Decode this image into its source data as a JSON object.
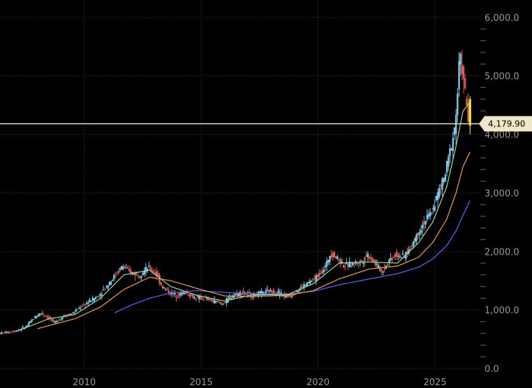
{
  "chart_data": {
    "type": "candlestick",
    "title": "",
    "xlabel": "",
    "ylabel": "",
    "x_tick_labels": [
      "2010",
      "2015",
      "2020",
      "2025"
    ],
    "y_tick_labels": [
      "6,000.0",
      "5,000.0",
      "4,000.0",
      "3,000.0",
      "2,000.0",
      "1,000.0",
      "0.0"
    ],
    "xlim": [
      2006.4,
      2027.0
    ],
    "ylim": [
      0,
      6200
    ],
    "y_axis_position": "right",
    "grid": true,
    "last_price_label": "4,179.90",
    "last_price": 4179.9,
    "colors": {
      "background": "#000000",
      "candle_up": "#7ec8e8",
      "candle_down": "#e05a5a",
      "ma_short": "#8fd98f",
      "ma_medium": "#e8963c",
      "ma_long": "#5a5aff",
      "price_line": "#e8e0c0",
      "last_candle": "#ffff00",
      "price_tag": "#f0e6c8"
    },
    "price_series": [
      {
        "x": 2006.4,
        "y": 600
      },
      {
        "x": 2006.8,
        "y": 620
      },
      {
        "x": 2007.2,
        "y": 650
      },
      {
        "x": 2007.6,
        "y": 720
      },
      {
        "x": 2007.9,
        "y": 860
      },
      {
        "x": 2008.2,
        "y": 950
      },
      {
        "x": 2008.5,
        "y": 880
      },
      {
        "x": 2008.8,
        "y": 780
      },
      {
        "x": 2009.2,
        "y": 900
      },
      {
        "x": 2009.6,
        "y": 950
      },
      {
        "x": 2009.9,
        "y": 1050
      },
      {
        "x": 2010.3,
        "y": 1150
      },
      {
        "x": 2010.7,
        "y": 1250
      },
      {
        "x": 2011.0,
        "y": 1400
      },
      {
        "x": 2011.3,
        "y": 1550
      },
      {
        "x": 2011.7,
        "y": 1750
      },
      {
        "x": 2012.0,
        "y": 1650
      },
      {
        "x": 2012.4,
        "y": 1600
      },
      {
        "x": 2012.8,
        "y": 1720
      },
      {
        "x": 2013.1,
        "y": 1650
      },
      {
        "x": 2013.4,
        "y": 1400
      },
      {
        "x": 2013.7,
        "y": 1300
      },
      {
        "x": 2014.0,
        "y": 1250
      },
      {
        "x": 2014.4,
        "y": 1300
      },
      {
        "x": 2014.8,
        "y": 1200
      },
      {
        "x": 2015.2,
        "y": 1200
      },
      {
        "x": 2015.6,
        "y": 1150
      },
      {
        "x": 2016.0,
        "y": 1100
      },
      {
        "x": 2016.4,
        "y": 1250
      },
      {
        "x": 2016.8,
        "y": 1300
      },
      {
        "x": 2017.2,
        "y": 1250
      },
      {
        "x": 2017.6,
        "y": 1280
      },
      {
        "x": 2018.0,
        "y": 1320
      },
      {
        "x": 2018.4,
        "y": 1300
      },
      {
        "x": 2018.7,
        "y": 1220
      },
      {
        "x": 2019.0,
        "y": 1280
      },
      {
        "x": 2019.4,
        "y": 1400
      },
      {
        "x": 2019.8,
        "y": 1500
      },
      {
        "x": 2020.1,
        "y": 1600
      },
      {
        "x": 2020.4,
        "y": 1750
      },
      {
        "x": 2020.6,
        "y": 1980
      },
      {
        "x": 2020.9,
        "y": 1880
      },
      {
        "x": 2021.2,
        "y": 1750
      },
      {
        "x": 2021.6,
        "y": 1800
      },
      {
        "x": 2021.9,
        "y": 1820
      },
      {
        "x": 2022.2,
        "y": 1950
      },
      {
        "x": 2022.5,
        "y": 1800
      },
      {
        "x": 2022.8,
        "y": 1650
      },
      {
        "x": 2023.1,
        "y": 1850
      },
      {
        "x": 2023.4,
        "y": 1950
      },
      {
        "x": 2023.7,
        "y": 1900
      },
      {
        "x": 2024.0,
        "y": 2050
      },
      {
        "x": 2024.3,
        "y": 2300
      },
      {
        "x": 2024.6,
        "y": 2500
      },
      {
        "x": 2024.9,
        "y": 2650
      },
      {
        "x": 2025.2,
        "y": 3000
      },
      {
        "x": 2025.5,
        "y": 3300
      },
      {
        "x": 2025.7,
        "y": 3700
      },
      {
        "x": 2025.9,
        "y": 4100
      },
      {
        "x": 2026.0,
        "y": 4500
      },
      {
        "x": 2026.1,
        "y": 5200
      },
      {
        "x": 2026.2,
        "y": 5300
      },
      {
        "x": 2026.3,
        "y": 4800
      },
      {
        "x": 2026.4,
        "y": 4600
      },
      {
        "x": 2026.5,
        "y": 4180
      }
    ],
    "ma_short": [
      {
        "x": 2007.2,
        "y": 650
      },
      {
        "x": 2008.5,
        "y": 850
      },
      {
        "x": 2009.6,
        "y": 920
      },
      {
        "x": 2010.7,
        "y": 1200
      },
      {
        "x": 2011.7,
        "y": 1600
      },
      {
        "x": 2012.8,
        "y": 1680
      },
      {
        "x": 2013.7,
        "y": 1400
      },
      {
        "x": 2014.8,
        "y": 1250
      },
      {
        "x": 2016.0,
        "y": 1150
      },
      {
        "x": 2017.2,
        "y": 1260
      },
      {
        "x": 2018.7,
        "y": 1260
      },
      {
        "x": 2019.8,
        "y": 1450
      },
      {
        "x": 2020.9,
        "y": 1800
      },
      {
        "x": 2022.2,
        "y": 1820
      },
      {
        "x": 2023.4,
        "y": 1800
      },
      {
        "x": 2024.3,
        "y": 2150
      },
      {
        "x": 2024.9,
        "y": 2500
      },
      {
        "x": 2025.5,
        "y": 3100
      },
      {
        "x": 2025.9,
        "y": 3800
      },
      {
        "x": 2026.2,
        "y": 4400
      },
      {
        "x": 2026.5,
        "y": 4550
      }
    ],
    "ma_medium": [
      {
        "x": 2008.0,
        "y": 680
      },
      {
        "x": 2009.6,
        "y": 850
      },
      {
        "x": 2010.7,
        "y": 1050
      },
      {
        "x": 2011.7,
        "y": 1350
      },
      {
        "x": 2012.8,
        "y": 1560
      },
      {
        "x": 2013.7,
        "y": 1500
      },
      {
        "x": 2014.8,
        "y": 1370
      },
      {
        "x": 2016.0,
        "y": 1240
      },
      {
        "x": 2017.2,
        "y": 1230
      },
      {
        "x": 2018.7,
        "y": 1250
      },
      {
        "x": 2019.8,
        "y": 1330
      },
      {
        "x": 2020.9,
        "y": 1530
      },
      {
        "x": 2022.2,
        "y": 1700
      },
      {
        "x": 2023.4,
        "y": 1750
      },
      {
        "x": 2024.3,
        "y": 1900
      },
      {
        "x": 2024.9,
        "y": 2150
      },
      {
        "x": 2025.5,
        "y": 2550
      },
      {
        "x": 2025.9,
        "y": 3000
      },
      {
        "x": 2026.2,
        "y": 3450
      },
      {
        "x": 2026.5,
        "y": 3700
      }
    ],
    "ma_long": [
      {
        "x": 2011.3,
        "y": 950
      },
      {
        "x": 2012.0,
        "y": 1080
      },
      {
        "x": 2012.8,
        "y": 1200
      },
      {
        "x": 2013.7,
        "y": 1290
      },
      {
        "x": 2014.8,
        "y": 1330
      },
      {
        "x": 2016.0,
        "y": 1300
      },
      {
        "x": 2017.2,
        "y": 1280
      },
      {
        "x": 2018.7,
        "y": 1270
      },
      {
        "x": 2019.8,
        "y": 1320
      },
      {
        "x": 2020.9,
        "y": 1430
      },
      {
        "x": 2022.2,
        "y": 1530
      },
      {
        "x": 2023.4,
        "y": 1620
      },
      {
        "x": 2024.3,
        "y": 1730
      },
      {
        "x": 2024.9,
        "y": 1870
      },
      {
        "x": 2025.5,
        "y": 2100
      },
      {
        "x": 2025.9,
        "y": 2350
      },
      {
        "x": 2026.2,
        "y": 2620
      },
      {
        "x": 2026.5,
        "y": 2870
      }
    ]
  }
}
